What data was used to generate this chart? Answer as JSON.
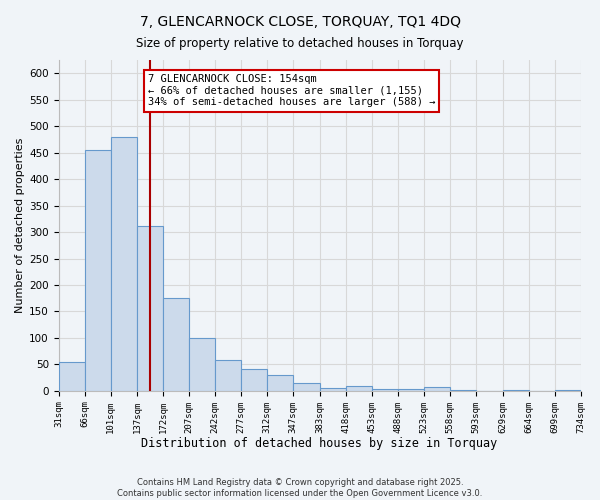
{
  "title": "7, GLENCARNOCK CLOSE, TORQUAY, TQ1 4DQ",
  "subtitle": "Size of property relative to detached houses in Torquay",
  "xlabel": "Distribution of detached houses by size in Torquay",
  "ylabel": "Number of detached properties",
  "bar_color": "#ccdaeb",
  "bar_edge_color": "#6699cc",
  "bin_edges": [
    31,
    66,
    101,
    137,
    172,
    207,
    242,
    277,
    312,
    347,
    383,
    418,
    453,
    488,
    523,
    558,
    593,
    629,
    664,
    699,
    734
  ],
  "bin_labels": [
    "31sqm",
    "66sqm",
    "101sqm",
    "137sqm",
    "172sqm",
    "207sqm",
    "242sqm",
    "277sqm",
    "312sqm",
    "347sqm",
    "383sqm",
    "418sqm",
    "453sqm",
    "488sqm",
    "523sqm",
    "558sqm",
    "593sqm",
    "629sqm",
    "664sqm",
    "699sqm",
    "734sqm"
  ],
  "counts": [
    55,
    455,
    479,
    312,
    175,
    100,
    59,
    41,
    30,
    15,
    6,
    9,
    4,
    4,
    7,
    1,
    0,
    1,
    0,
    1
  ],
  "vline_x": 154,
  "vline_color": "#aa0000",
  "annotation_text": "7 GLENCARNOCK CLOSE: 154sqm\n← 66% of detached houses are smaller (1,155)\n34% of semi-detached houses are larger (588) →",
  "annotation_box_color": "#ffffff",
  "annotation_box_edge": "#cc0000",
  "ylim": [
    0,
    625
  ],
  "yticks": [
    0,
    50,
    100,
    150,
    200,
    250,
    300,
    350,
    400,
    450,
    500,
    550,
    600
  ],
  "grid_color": "#d8d8d8",
  "bg_color": "#f0f4f8",
  "footer_line1": "Contains HM Land Registry data © Crown copyright and database right 2025.",
  "footer_line2": "Contains public sector information licensed under the Open Government Licence v3.0."
}
